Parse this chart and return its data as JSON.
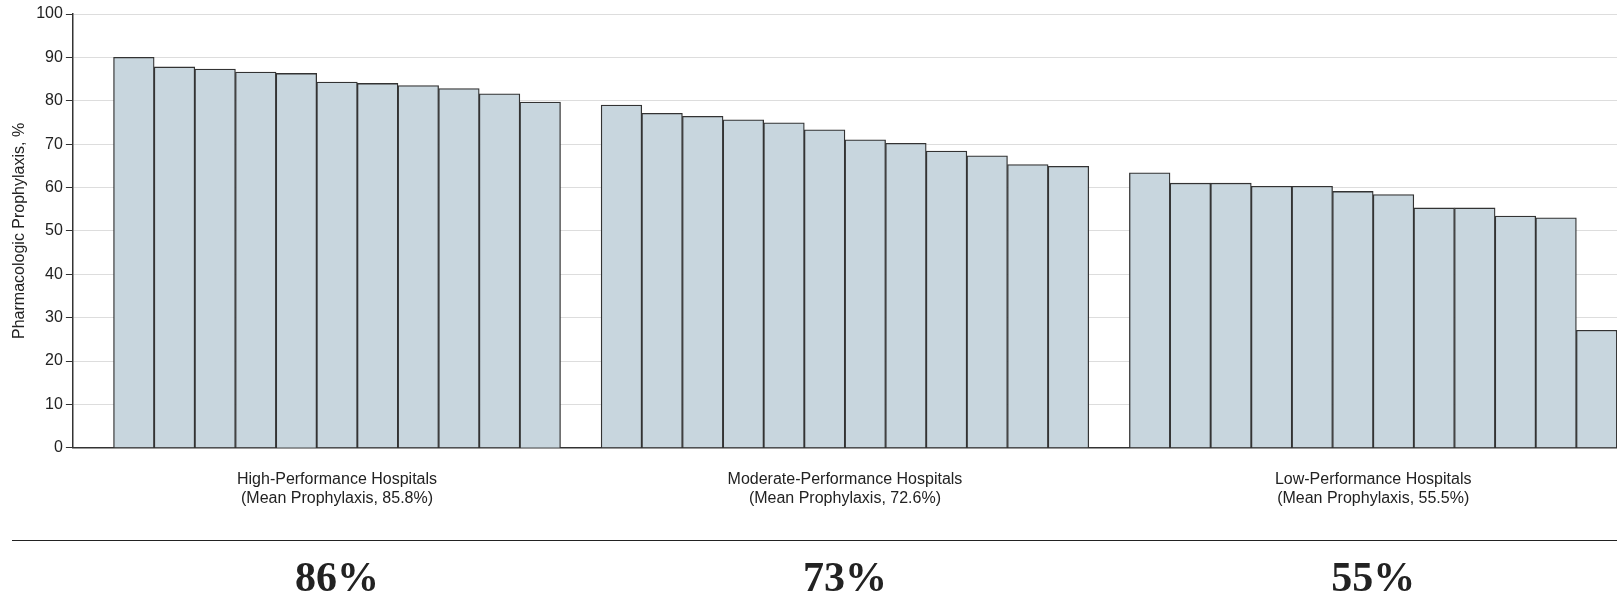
{
  "chart_data": {
    "type": "bar",
    "ylabel": "Pharmacologic Prophylaxis, %",
    "categories": [
      null,
      null,
      null,
      null,
      null,
      null,
      null,
      null,
      null,
      null,
      null,
      null,
      null,
      null,
      null,
      null,
      null,
      null,
      null,
      null,
      null,
      null,
      null,
      null,
      null,
      null,
      null,
      null,
      null,
      null,
      null,
      null,
      null,
      null,
      null,
      null,
      null,
      null
    ],
    "values": [
      null,
      90.0,
      87.8,
      87.3,
      86.6,
      86.3,
      84.3,
      84.0,
      83.5,
      82.8,
      81.6,
      79.7,
      null,
      79.0,
      77.1,
      76.4,
      75.6,
      74.9,
      73.3,
      71.0,
      70.2,
      68.4,
      67.3,
      65.3,
      64.9,
      null,
      63.4,
      61.0,
      61.0,
      60.3,
      60.3,
      59.1,
      58.4,
      55.3,
      55.3,
      53.4,
      53.0,
      27.1
    ],
    "color": "#c8d6de",
    "ylim": [
      0,
      100
    ],
    "yticks": [
      0,
      10,
      20,
      30,
      40,
      50,
      60,
      70,
      80,
      90,
      100
    ],
    "grid": "y",
    "annotations": [
      "High-Performance Hospitals\n(Mean Prophylaxis, 85.8%)",
      "Moderate-Performance Hospitals\n(Mean Prophylaxis, 72.6%)",
      "Low-Performance Hospitals\n(Mean Prophylaxis, 55.5%)",
      "86%",
      "73%",
      "55%"
    ]
  }
}
